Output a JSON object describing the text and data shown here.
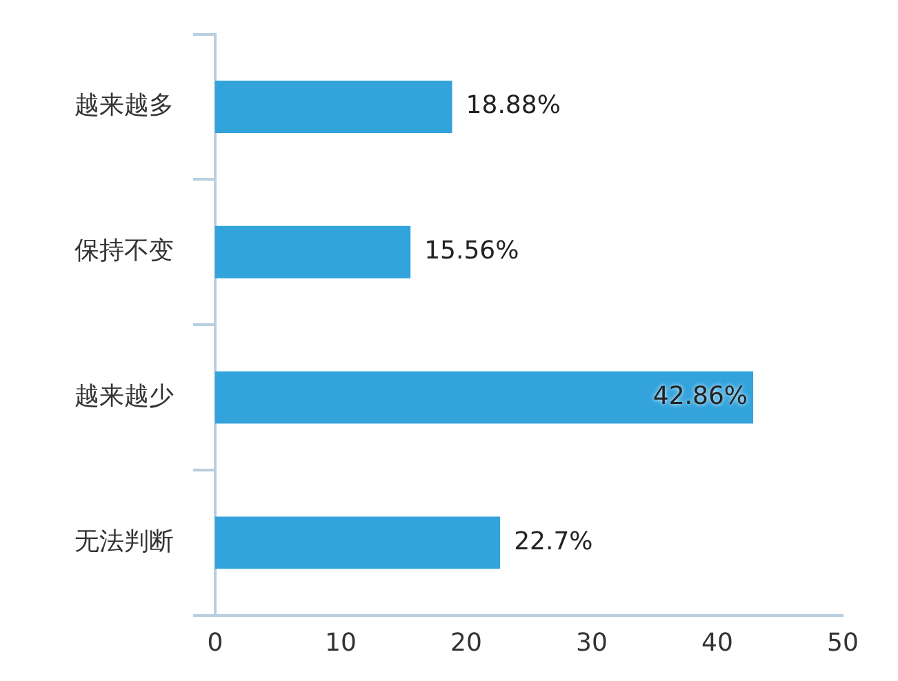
{
  "chart_data": {
    "type": "bar",
    "orientation": "horizontal",
    "categories": [
      "越来越多",
      "保持不变",
      "越来越少",
      "无法判断"
    ],
    "values": [
      18.88,
      15.56,
      42.86,
      22.7
    ],
    "value_labels": [
      "18.88%",
      "15.56%",
      "42.86%",
      "22.7%"
    ],
    "color": "#33a3dc",
    "xlim": [
      0,
      50
    ],
    "xticks": [
      0,
      10,
      20,
      30,
      40,
      50
    ],
    "grid": false,
    "legend": false
  }
}
